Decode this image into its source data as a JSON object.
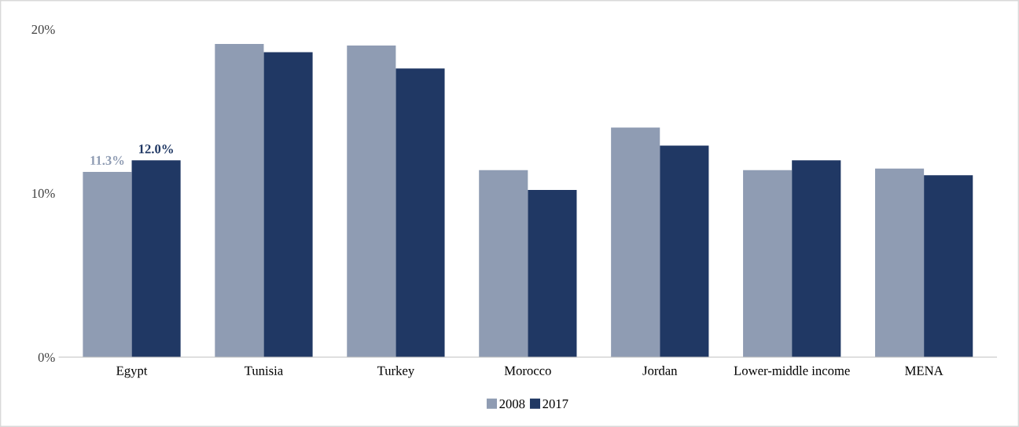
{
  "chart_data": {
    "type": "bar",
    "categories": [
      "Egypt",
      "Tunisia",
      "Turkey",
      "Morocco",
      "Jordan",
      "Lower-middle income",
      "MENA"
    ],
    "series": [
      {
        "name": "2008",
        "color": "#8f9cb3",
        "values": [
          11.3,
          19.1,
          19.0,
          11.4,
          14.0,
          11.4,
          11.5
        ],
        "value_labels": [
          "11.3%",
          null,
          null,
          null,
          null,
          null,
          null
        ]
      },
      {
        "name": "2017",
        "color": "#203864",
        "values": [
          12.0,
          18.6,
          17.6,
          10.2,
          12.9,
          12.0,
          11.1
        ],
        "value_labels": [
          "12.0%",
          null,
          null,
          null,
          null,
          null,
          null
        ]
      }
    ],
    "ylim": [
      0,
      20
    ],
    "yticks": [
      {
        "value": 0,
        "label": "0%"
      },
      {
        "value": 10,
        "label": "10%"
      },
      {
        "value": 20,
        "label": "20%"
      }
    ],
    "grid": false,
    "legend": "bottom"
  }
}
